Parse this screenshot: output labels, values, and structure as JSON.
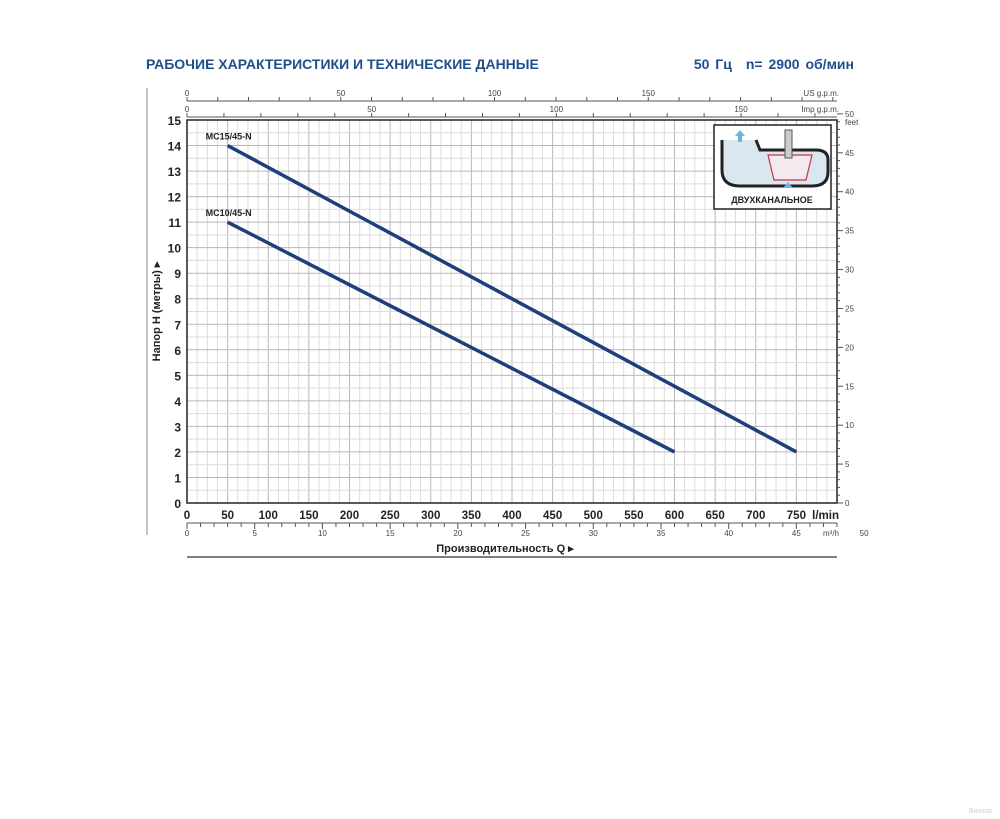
{
  "header": {
    "title": "РАБОЧИЕ ХАРАКТЕРИСТИКИ И ТЕХНИЧЕСКИЕ ДАННЫЕ",
    "frequency": "50 Гц",
    "speed": "n= 2900 об/мин"
  },
  "inset": {
    "label": "ДВУХКАНАЛЬНОЕ"
  },
  "watermark": "Вихкор",
  "chart_data": {
    "type": "line",
    "xlabel": "Производительность Q",
    "ylabel": "Напор H (метры)",
    "x_unit": "l/min",
    "xlim": [
      0,
      800
    ],
    "ylim": [
      0,
      15
    ],
    "xticks": [
      0,
      50,
      100,
      150,
      200,
      250,
      300,
      350,
      400,
      450,
      500,
      550,
      600,
      650,
      700,
      750
    ],
    "yticks": [
      0,
      1,
      2,
      3,
      4,
      5,
      6,
      7,
      8,
      9,
      10,
      11,
      12,
      13,
      14,
      15
    ],
    "grid": true,
    "secondary_axes": {
      "top_us": {
        "unit": "US g.p.m.",
        "ticks": [
          0,
          50,
          100,
          150
        ]
      },
      "top_imp": {
        "unit": "Imp g.p.m.",
        "ticks": [
          0,
          50,
          100,
          150
        ]
      },
      "bottom_m3h": {
        "unit": "m³/h",
        "ticks": [
          0,
          5,
          10,
          15,
          20,
          25,
          30,
          35,
          40,
          45,
          50
        ]
      },
      "right_feet": {
        "unit": "feet",
        "ticks": [
          0,
          5,
          10,
          15,
          20,
          25,
          30,
          35,
          40,
          45,
          50
        ]
      }
    },
    "series": [
      {
        "name": "MC15/45-N",
        "x": [
          50,
          750
        ],
        "y": [
          14,
          2
        ]
      },
      {
        "name": "MC10/45-N",
        "x": [
          50,
          600
        ],
        "y": [
          11,
          2
        ]
      }
    ],
    "line_color": "#1f3f7a"
  }
}
